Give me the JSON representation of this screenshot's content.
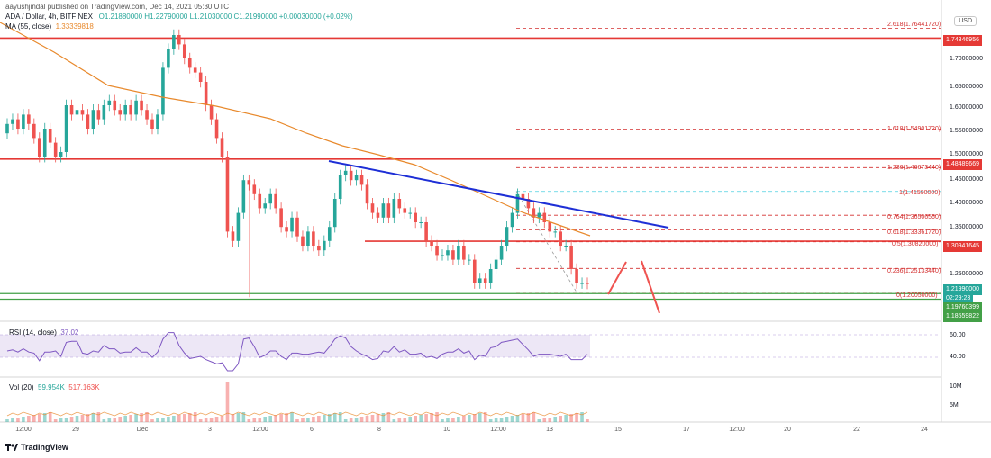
{
  "header": {
    "publisher": "aayushjindal published on TradingView.com, Dec 14, 2021 05:30 UTC",
    "symbol": "ADA / Dollar, 4h, BITFINEX",
    "ohlc": "O1.21880000  H1.22790000  L1.21030000  C1.21990000  +0.00030000 (+0.02%)",
    "ma_label": "MA (55, close)",
    "ma_value": "1.33339818",
    "currency_button": "USD"
  },
  "price_axis": {
    "ticks": [
      "1.70000000",
      "1.65000000",
      "1.60000000",
      "1.55000000",
      "1.50000000",
      "1.45000000",
      "1.40000000",
      "1.35000000",
      "1.25000000"
    ],
    "tags": {
      "resistance_top": "1.74346956",
      "resistance_mid": "1.48489669",
      "resistance_low": "1.30941645",
      "last_price": "1.21990000",
      "countdown": "02:29:23",
      "support_1": "1.19760399",
      "support_2": "1.18559822"
    }
  },
  "fib_levels": [
    {
      "ratio": "2.618",
      "price": "1.76441720",
      "label": "2.618(1.76441720)"
    },
    {
      "ratio": "1.618",
      "price": "1.54901720",
      "label": "1.618(1.54901720)"
    },
    {
      "ratio": "1.236",
      "price": "1.46673440",
      "label": "1.236(1.46673440)"
    },
    {
      "ratio": "1",
      "price": "1.41590000",
      "label": "1(1.41590000)"
    },
    {
      "ratio": "0.764",
      "price": "1.36506560",
      "label": "0.764(1.36506560)"
    },
    {
      "ratio": "0.618",
      "price": "1.33361720",
      "label": "0.618(1.33361720)"
    },
    {
      "ratio": "0.5",
      "price": "1.30820000",
      "label": "0.5(1.30820000)"
    },
    {
      "ratio": "0.236",
      "price": "1.25133440",
      "label": "0.236(1.25133440)"
    },
    {
      "ratio": "0",
      "price": "1.20050000",
      "label": "0(1.20050000)"
    }
  ],
  "rsi": {
    "label": "RSI (14, close)",
    "value": "37.02",
    "ticks": [
      "60.00",
      "40.00"
    ]
  },
  "volume": {
    "label": "Vol (20)",
    "value1": "59.954K",
    "value2": "517.163K",
    "ticks": [
      "10M",
      "5M"
    ]
  },
  "time_axis": [
    "12:00",
    "29",
    "Dec",
    "3",
    "12:00",
    "6",
    "8",
    "10",
    "12:00",
    "13",
    "15",
    "17",
    "12:00",
    "20",
    "22",
    "24"
  ],
  "footer": {
    "logo_text": "TradingView"
  },
  "colors": {
    "up": "#26a69a",
    "down": "#ef5350",
    "resistance": "#e53935",
    "support": "#43a047",
    "trendline": "#1e2fd6",
    "ma": "#e8892c",
    "rsi": "#7e57c2",
    "fib": "#d32f2f"
  }
}
